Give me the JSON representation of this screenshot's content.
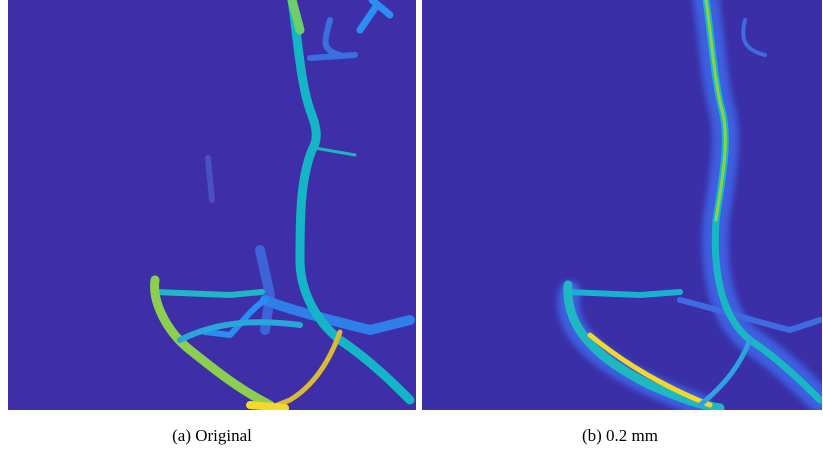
{
  "figure": {
    "panels": [
      {
        "caption": "(a) Original"
      },
      {
        "caption": "(b) 0.2 mm"
      }
    ]
  }
}
